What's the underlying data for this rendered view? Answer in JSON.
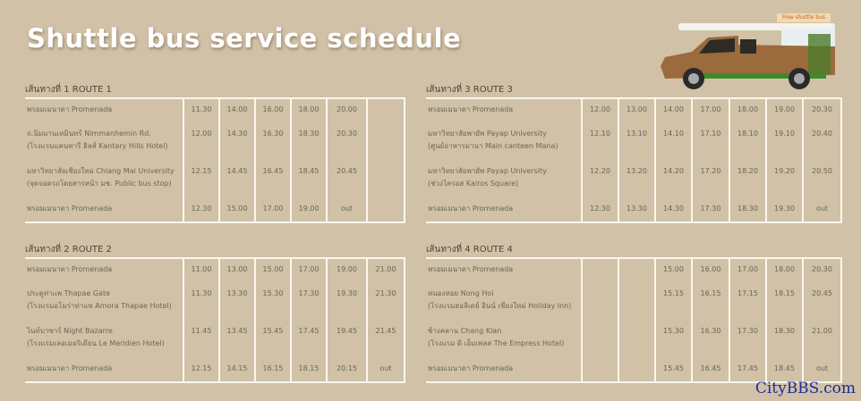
{
  "title": "Shuttle bus service schedule",
  "vehicle_sign": "Free shuttle bus",
  "watermark": "CityBBS.com",
  "routes": [
    {
      "title": "เส้นทางที่ 1  ROUTE 1",
      "stops": [
        {
          "lines": [
            "พรอมเมนาดา  Promenada"
          ],
          "times": [
            "11.30",
            "14.00",
            "16.00",
            "18.00",
            "20.00",
            ""
          ]
        },
        {
          "lines": [
            "ถ.นิมมานเหมินทร์  Nimmanhemin Rd.",
            "(โรงแรมแคนทารี ฮิลส์  Kantary Hills Hotel)"
          ],
          "times": [
            "12.00",
            "14.30",
            "16.30",
            "18.30",
            "20.30",
            ""
          ]
        },
        {
          "lines": [
            "มหาวิทยาลัยเชียงใหม่  Chiang Mai University",
            "(จุดจอดรถโดยสารหน้า มช.  Public bus stop)"
          ],
          "times": [
            "12.15",
            "14.45",
            "16.45",
            "18.45",
            "20.45",
            ""
          ]
        },
        {
          "lines": [
            "พรอมเมนาดา  Promenada"
          ],
          "times": [
            "12.30",
            "15.00",
            "17.00",
            "19.00",
            "out",
            ""
          ]
        }
      ]
    },
    {
      "title": "เส้นทางที่ 2  ROUTE 2",
      "stops": [
        {
          "lines": [
            "พรอมเมนาดา  Promenada"
          ],
          "times": [
            "11.00",
            "13.00",
            "15.00",
            "17.00",
            "19.00",
            "21.00"
          ]
        },
        {
          "lines": [
            "ประตูท่าแพ  Thapae Gate",
            "(โรงแรมอโมร่าท่าแพ  Amora Thapae Hotel)"
          ],
          "times": [
            "11.30",
            "13.30",
            "15.30",
            "17.30",
            "19.30",
            "21.30"
          ]
        },
        {
          "lines": [
            "ไนท์บาซาร์  Night Bazarre",
            "(โรงแรมเลอเมอริเดียน  Le Meridien Hotel)"
          ],
          "times": [
            "11.45",
            "13.45",
            "15.45",
            "17.45",
            "19.45",
            "21.45"
          ]
        },
        {
          "lines": [
            "พรอมเมนาดา  Promenada"
          ],
          "times": [
            "12.15",
            "14.15",
            "16.15",
            "18.15",
            "20.15",
            "out"
          ]
        }
      ]
    },
    {
      "title": "เส้นทางที่ 3  ROUTE 3",
      "stops": [
        {
          "lines": [
            "พรอมเมนาดา  Promenada"
          ],
          "times": [
            "12.00",
            "13.00",
            "14.00",
            "17.00",
            "18.00",
            "19.00",
            "20.30"
          ]
        },
        {
          "lines": [
            "มหาวิทยาลัยพายัพ  Payap University",
            "(ศูนย์อาหารมานา  Main canteen Mana)"
          ],
          "times": [
            "12.10",
            "13.10",
            "14.10",
            "17.10",
            "18.10",
            "19.10",
            "20.40"
          ]
        },
        {
          "lines": [
            "มหาวิทยาลัยพายัพ  Payap University",
            "(ช่วงไครอส  Kairos Square)"
          ],
          "times": [
            "12.20",
            "13.20",
            "14.20",
            "17.20",
            "18.20",
            "19.20",
            "20.50"
          ]
        },
        {
          "lines": [
            "พรอมเมนาดา  Promenada"
          ],
          "times": [
            "12.30",
            "13.30",
            "14.30",
            "17.30",
            "18.30",
            "19.30",
            "out"
          ]
        }
      ]
    },
    {
      "title": "เส้นทางที่ 4  ROUTE 4",
      "stops": [
        {
          "lines": [
            "พรอมเมนาดา  Promenada"
          ],
          "times": [
            "",
            "",
            "15.00",
            "16.00",
            "17.00",
            "18.00",
            "20.30"
          ]
        },
        {
          "lines": [
            "หนองหอย  Nong Hoi",
            "(โรงแรมฮอลิเดย์ อินน์ เชียงใหม่  Holiday Inn)"
          ],
          "times": [
            "",
            "",
            "15.15",
            "16.15",
            "17.15",
            "18.15",
            "20.45"
          ]
        },
        {
          "lines": [
            "ช้างคลาน  Chang Klan",
            "(โรงแรม ดิ เอ็มเพลส  The Empress Hotel)"
          ],
          "times": [
            "",
            "",
            "15.30",
            "16.30",
            "17.30",
            "18.30",
            "21.00"
          ]
        },
        {
          "lines": [
            "พรอมเมนาดา  Promenada"
          ],
          "times": [
            "",
            "",
            "15.45",
            "16.45",
            "17.45",
            "18.45",
            "out"
          ]
        }
      ]
    }
  ]
}
